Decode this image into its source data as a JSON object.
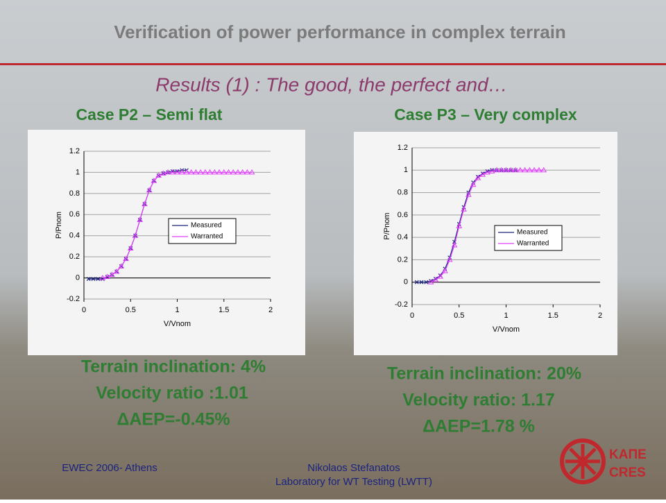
{
  "header": {
    "title": "Verification of power performance in complex terrain",
    "subtitle": "Results (1) : The good, the perfect and…"
  },
  "cases": [
    {
      "title": "Case P2 – Semi flat",
      "lines": [
        "Terrain inclination: 4%",
        "Velocity ratio :1.01",
        "ΔAEP=-0.45%"
      ]
    },
    {
      "title": "Case P3 – Very complex",
      "lines": [
        "Terrain inclination: 20%",
        "Velocity ratio: 1.17",
        "ΔAEP=1.78 %"
      ]
    }
  ],
  "chart_data": [
    {
      "type": "line",
      "x_label": "V/Vnom",
      "y_label": "P/Pnom",
      "xlim": [
        0,
        2
      ],
      "ylim": [
        -0.2,
        1.2
      ],
      "xticks": [
        0,
        0.5,
        1,
        1.5,
        2
      ],
      "yticks": [
        -0.2,
        0,
        0.2,
        0.4,
        0.6,
        0.8,
        1,
        1.2
      ],
      "legend": "right",
      "series": [
        {
          "name": "Measured",
          "color": "#1a237e",
          "marker": "x",
          "x": [
            0.05,
            0.1,
            0.15,
            0.2,
            0.25,
            0.3,
            0.35,
            0.4,
            0.45,
            0.5,
            0.55,
            0.6,
            0.65,
            0.7,
            0.75,
            0.8,
            0.85,
            0.9,
            0.95,
            1.0,
            1.05,
            1.1
          ],
          "values": [
            -0.01,
            -0.01,
            -0.01,
            -0.01,
            0.01,
            0.03,
            0.06,
            0.11,
            0.18,
            0.28,
            0.4,
            0.55,
            0.7,
            0.83,
            0.92,
            0.97,
            0.99,
            1.0,
            1.01,
            1.01,
            1.02,
            1.02
          ]
        },
        {
          "name": "Warranted",
          "color": "#e040fb",
          "marker": "triangle",
          "x": [
            0.2,
            0.25,
            0.3,
            0.35,
            0.4,
            0.45,
            0.5,
            0.55,
            0.6,
            0.65,
            0.7,
            0.75,
            0.8,
            0.85,
            0.9,
            0.95,
            1.0,
            1.05,
            1.1,
            1.15,
            1.2,
            1.25,
            1.3,
            1.35,
            1.4,
            1.45,
            1.5,
            1.55,
            1.6,
            1.65,
            1.7,
            1.75,
            1.8
          ],
          "values": [
            0,
            0.01,
            0.03,
            0.06,
            0.11,
            0.18,
            0.28,
            0.4,
            0.55,
            0.7,
            0.83,
            0.92,
            0.97,
            0.99,
            1,
            1,
            1,
            1,
            1,
            1,
            1,
            1,
            1,
            1,
            1,
            1,
            1,
            1,
            1,
            1,
            1,
            1,
            1
          ]
        }
      ]
    },
    {
      "type": "line",
      "x_label": "V/Vnom",
      "y_label": "P/Pnom",
      "xlim": [
        0,
        2
      ],
      "ylim": [
        -0.2,
        1.2
      ],
      "xticks": [
        0,
        0.5,
        1,
        1.5,
        2
      ],
      "yticks": [
        -0.2,
        0,
        0.2,
        0.4,
        0.6,
        0.8,
        1,
        1.2
      ],
      "legend": "right",
      "series": [
        {
          "name": "Measured",
          "color": "#1a237e",
          "marker": "x",
          "x": [
            0.05,
            0.1,
            0.15,
            0.2,
            0.25,
            0.3,
            0.35,
            0.4,
            0.45,
            0.5,
            0.55,
            0.6,
            0.65,
            0.7,
            0.75,
            0.8,
            0.85,
            0.9,
            0.95,
            1.0,
            1.05,
            1.1
          ],
          "values": [
            0,
            0,
            0,
            0.01,
            0.03,
            0.06,
            0.12,
            0.22,
            0.36,
            0.52,
            0.67,
            0.8,
            0.89,
            0.94,
            0.97,
            0.99,
            1.0,
            1.0,
            1.0,
            1.0,
            1.0,
            1.0
          ]
        },
        {
          "name": "Warranted",
          "color": "#e040fb",
          "marker": "triangle",
          "x": [
            0.2,
            0.25,
            0.3,
            0.35,
            0.4,
            0.45,
            0.5,
            0.55,
            0.6,
            0.65,
            0.7,
            0.75,
            0.8,
            0.85,
            0.9,
            0.95,
            1.0,
            1.05,
            1.1,
            1.15,
            1.2,
            1.25,
            1.3,
            1.35,
            1.4
          ],
          "values": [
            0,
            0.02,
            0.05,
            0.1,
            0.2,
            0.33,
            0.5,
            0.65,
            0.78,
            0.87,
            0.93,
            0.96,
            0.98,
            0.99,
            1,
            1,
            1,
            1,
            1,
            1,
            1,
            1,
            1,
            1,
            1
          ]
        }
      ]
    }
  ],
  "footer": {
    "left": "EWEC 2006- Athens",
    "center": [
      "Nikolaos Stefanatos",
      "Laboratory for WT Testing (LWTT)"
    ],
    "logo": [
      "ΚΑΠΕ",
      "CRES"
    ]
  }
}
